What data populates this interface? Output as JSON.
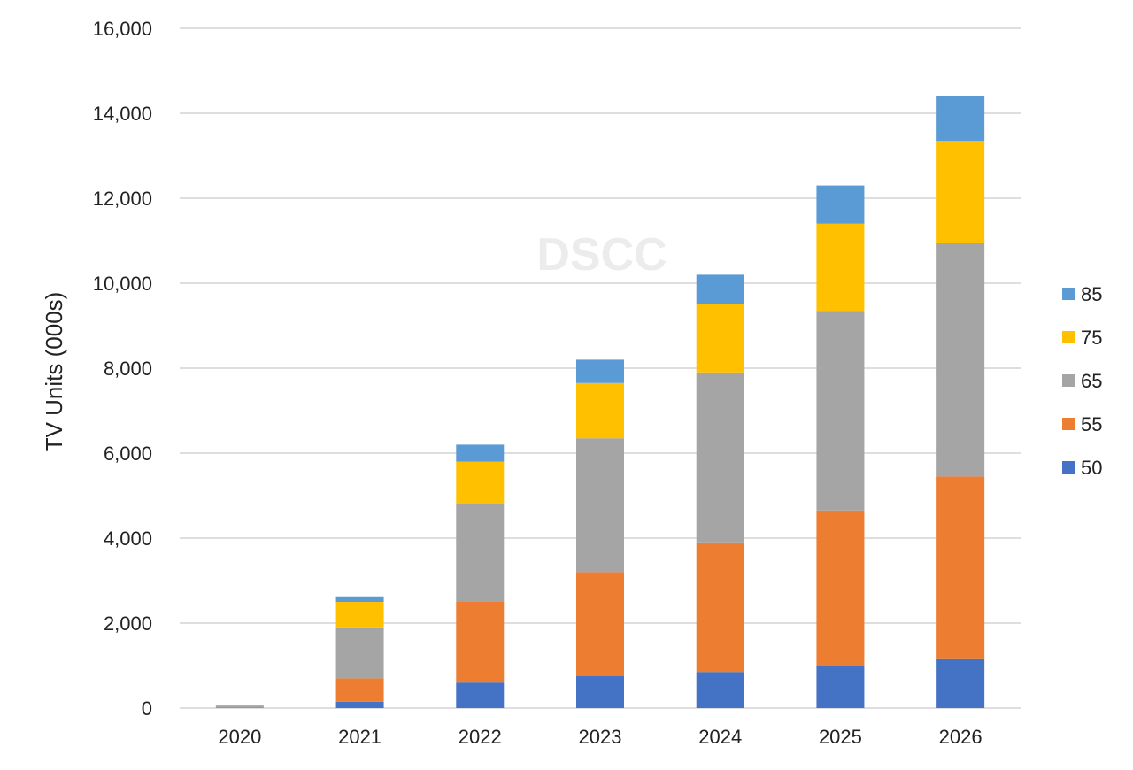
{
  "chart_data": {
    "type": "bar",
    "stacked": true,
    "title": "",
    "xlabel": "",
    "ylabel": "TV Units (000s)",
    "ylim": [
      0,
      16000
    ],
    "yticks": [
      0,
      2000,
      4000,
      6000,
      8000,
      10000,
      12000,
      14000,
      16000
    ],
    "ytick_labels": [
      "0",
      "2,000",
      "4,000",
      "6,000",
      "8,000",
      "10,000",
      "12,000",
      "14,000",
      "16,000"
    ],
    "grid": true,
    "legend_position": "right",
    "watermark": "DSCC",
    "categories": [
      "2020",
      "2021",
      "2022",
      "2023",
      "2024",
      "2025",
      "2026"
    ],
    "series": [
      {
        "name": "50",
        "color": "#4472C4",
        "values": [
          0,
          150,
          600,
          750,
          850,
          1000,
          1150
        ]
      },
      {
        "name": "55",
        "color": "#ED7D31",
        "values": [
          20,
          550,
          1900,
          2450,
          3050,
          3650,
          4300
        ]
      },
      {
        "name": "65",
        "color": "#A5A5A5",
        "values": [
          40,
          1200,
          2300,
          3150,
          4000,
          4700,
          5500
        ]
      },
      {
        "name": "75",
        "color": "#FFC000",
        "values": [
          20,
          600,
          1000,
          1300,
          1600,
          2050,
          2400
        ]
      },
      {
        "name": "85",
        "color": "#5B9BD5",
        "values": [
          0,
          130,
          400,
          550,
          700,
          900,
          1050
        ]
      }
    ]
  }
}
